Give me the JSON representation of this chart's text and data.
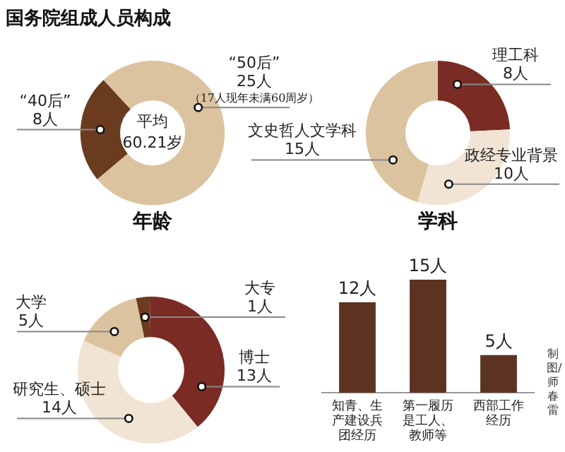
{
  "chart_data": [
    {
      "type": "donut",
      "title": "国务院组成人员构成",
      "subtitle": "年龄",
      "categories": [
        "“40后”",
        "“50后”"
      ],
      "values": [
        8,
        25
      ],
      "value_labels": [
        "8人",
        "25人"
      ],
      "colors": [
        "#6a3b1f",
        "#dcc3a0"
      ],
      "annotations": [
        "平均\n60.21岁",
        "（17人现年未满60周岁）"
      ],
      "legend": false
    },
    {
      "type": "donut",
      "title": "学科",
      "categories": [
        "理工科",
        "政经专业背景",
        "文史哲人文学科"
      ],
      "values": [
        8,
        10,
        15
      ],
      "value_labels": [
        "8人",
        "10人",
        "15人"
      ],
      "colors": [
        "#7a2b24",
        "#f1e4d4",
        "#dcc3a0"
      ],
      "legend": false
    },
    {
      "type": "donut",
      "categories": [
        "大专",
        "博士",
        "研究生、硕士",
        "大学"
      ],
      "values": [
        1,
        13,
        14,
        5
      ],
      "value_labels": [
        "1人",
        "13人",
        "14人",
        "5人"
      ],
      "colors": [
        "#6a3b1f",
        "#7a2b24",
        "#f1e4d4",
        "#dcc3a0"
      ],
      "legend": false
    },
    {
      "type": "bar",
      "categories": [
        "知青、生产建设兵团经历",
        "第一履历是工人、教师等",
        "西部工作经历"
      ],
      "values": [
        12,
        15,
        5
      ],
      "value_labels": [
        "12人",
        "15人",
        "5人"
      ],
      "color": "#5c3321",
      "tick_labels": "x",
      "annotations": [
        "制图/师春雷"
      ],
      "legend": false,
      "grid": false
    }
  ]
}
